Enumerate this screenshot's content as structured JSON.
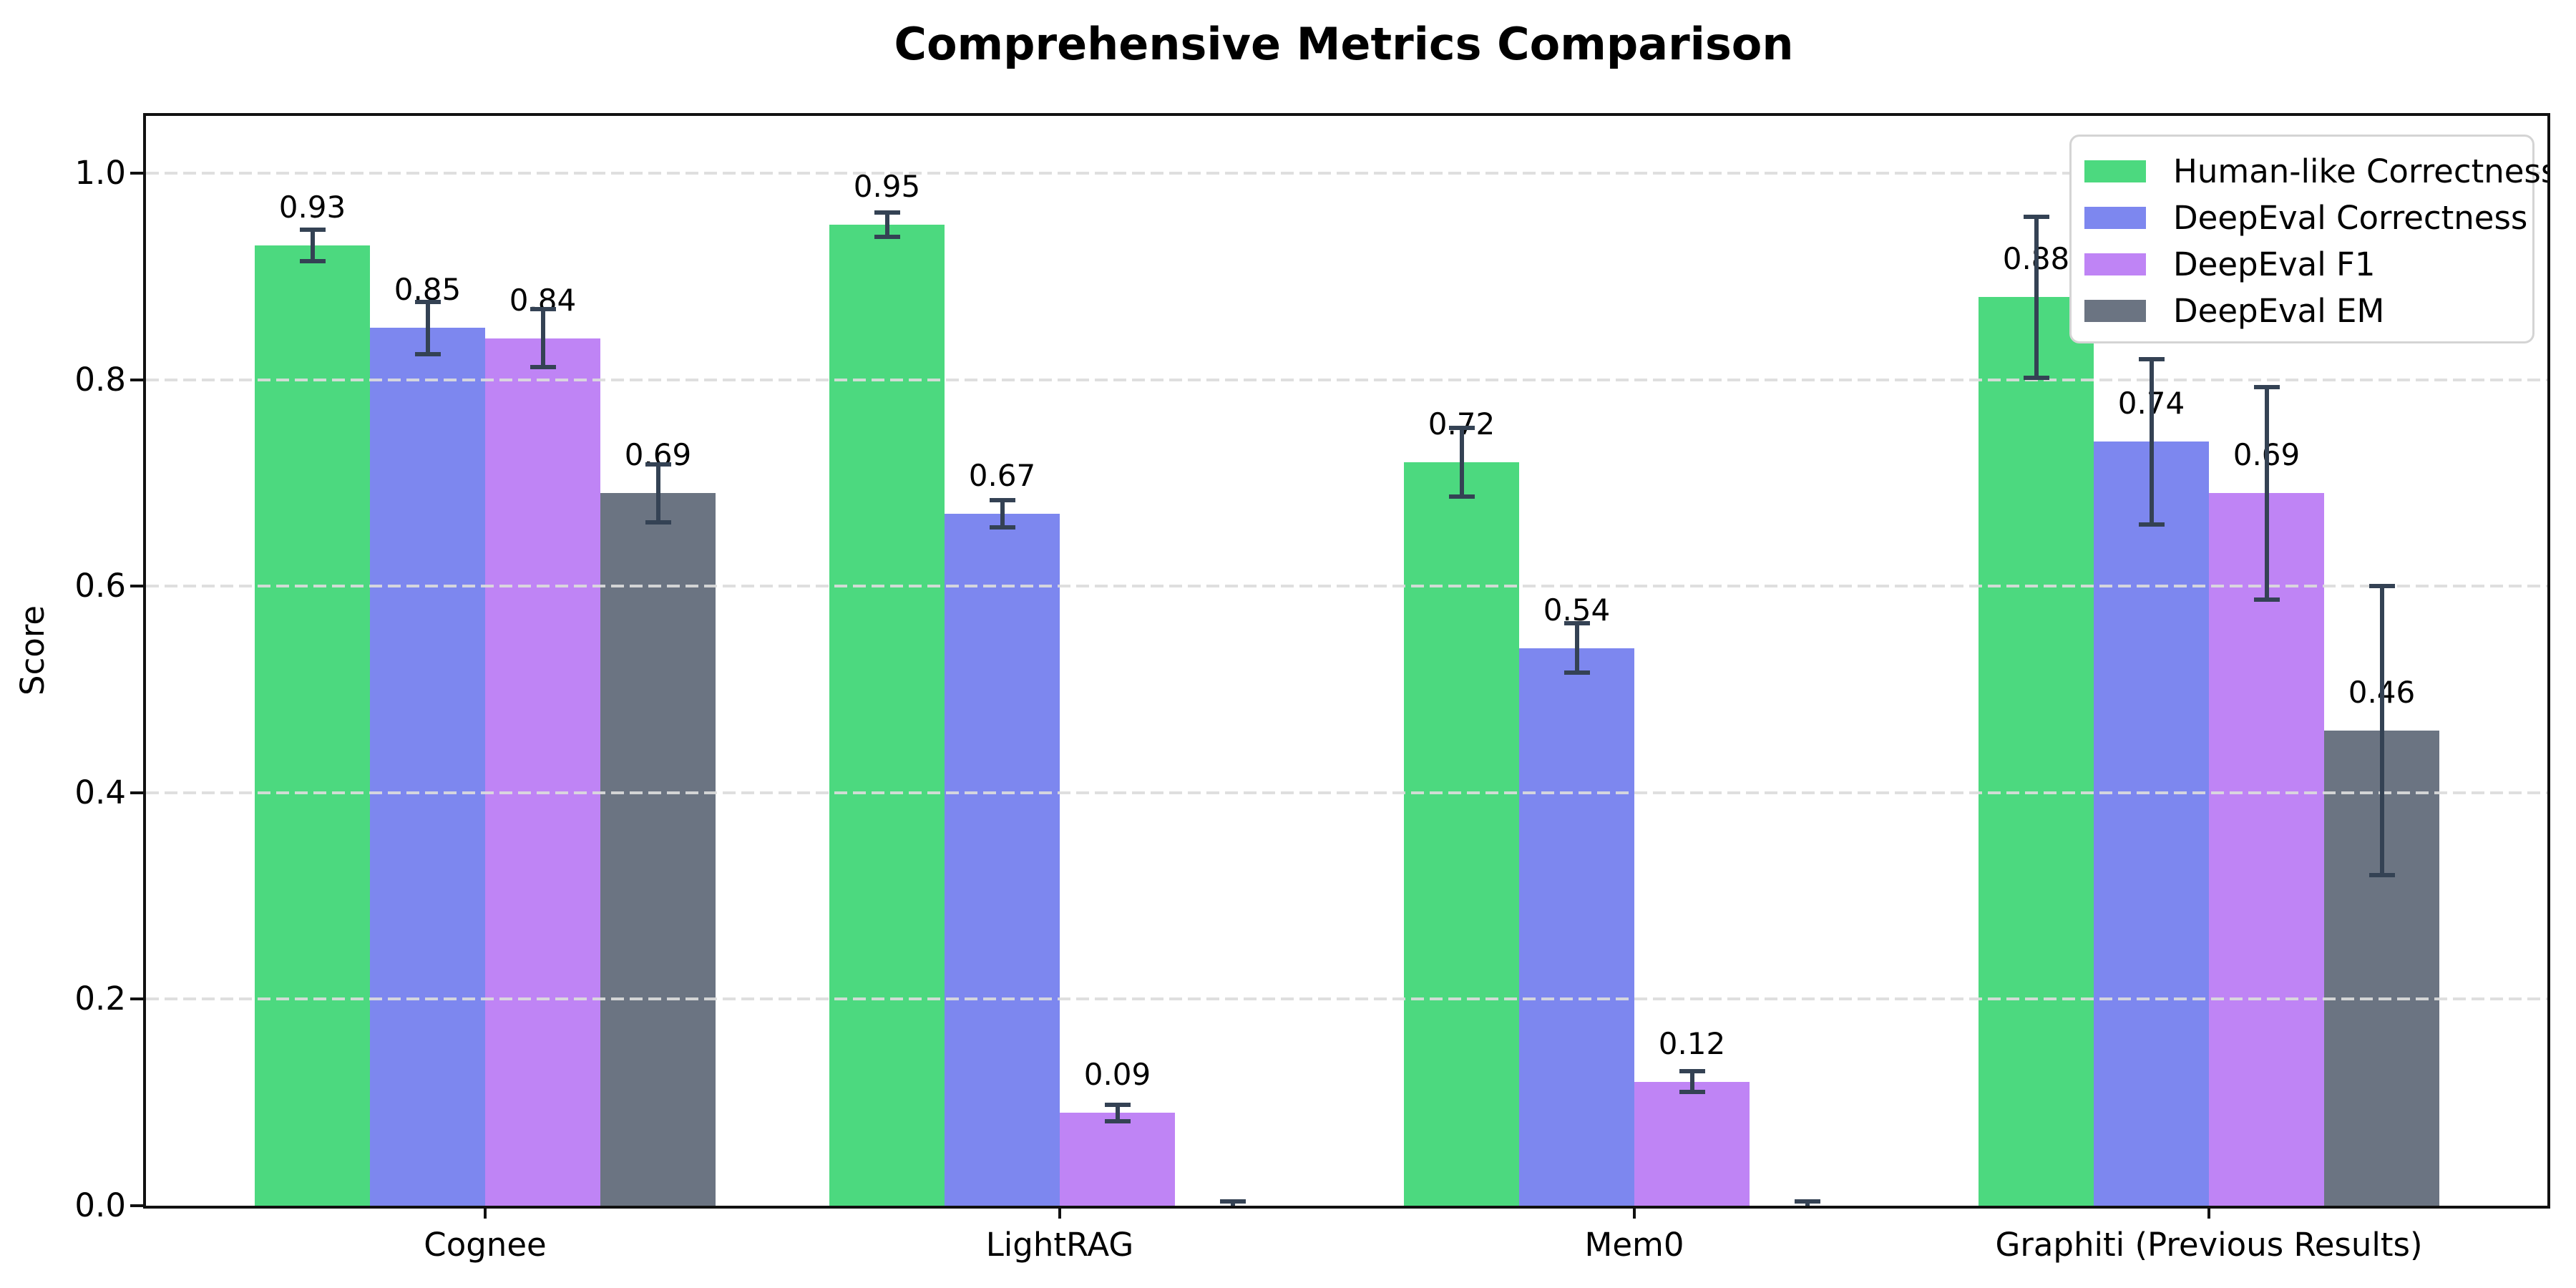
{
  "chart_data": {
    "type": "bar",
    "title": "Comprehensive Metrics Comparison",
    "xlabel": "",
    "ylabel": "Score",
    "categories": [
      "Cognee",
      "LightRAG",
      "Mem0",
      "Graphiti (Previous Results)"
    ],
    "series": [
      {
        "name": "Human-like Correctness",
        "color": "#4cd97f",
        "values": [
          0.93,
          0.95,
          0.72,
          0.88
        ],
        "errors": [
          0.015,
          0.012,
          0.033,
          0.078
        ],
        "labels": [
          "0.93",
          "0.95",
          "0.72",
          "0.88"
        ]
      },
      {
        "name": "DeepEval Correctness",
        "color": "#7d87ef",
        "values": [
          0.85,
          0.67,
          0.54,
          0.74
        ],
        "errors": [
          0.025,
          0.013,
          0.024,
          0.08
        ],
        "labels": [
          "0.85",
          "0.67",
          "0.54",
          "0.74"
        ]
      },
      {
        "name": "DeepEval F1",
        "color": "#bf84f5",
        "values": [
          0.84,
          0.09,
          0.12,
          0.69
        ],
        "errors": [
          0.028,
          0.008,
          0.01,
          0.103
        ],
        "labels": [
          "0.84",
          "0.09",
          "0.12",
          "0.69"
        ]
      },
      {
        "name": "DeepEval EM",
        "color": "#6b7482",
        "values": [
          0.69,
          0.0,
          0.0,
          0.46
        ],
        "errors": [
          0.028,
          0.004,
          0.004,
          0.14
        ],
        "labels": [
          "0.69",
          null,
          null,
          "0.46"
        ]
      }
    ],
    "y_ticks": [
      {
        "value": 0.0,
        "label": "0.0"
      },
      {
        "value": 0.2,
        "label": "0.2"
      },
      {
        "value": 0.4,
        "label": "0.4"
      },
      {
        "value": 0.6,
        "label": "0.6"
      },
      {
        "value": 0.8,
        "label": "0.8"
      },
      {
        "value": 1.0,
        "label": "1.0"
      }
    ],
    "ylim": [
      0,
      1.055
    ],
    "grid": "horizontal-dashed",
    "grid_color": "#dcdcdc",
    "error_bar_color": "#344254",
    "legend_position": "upper right"
  }
}
